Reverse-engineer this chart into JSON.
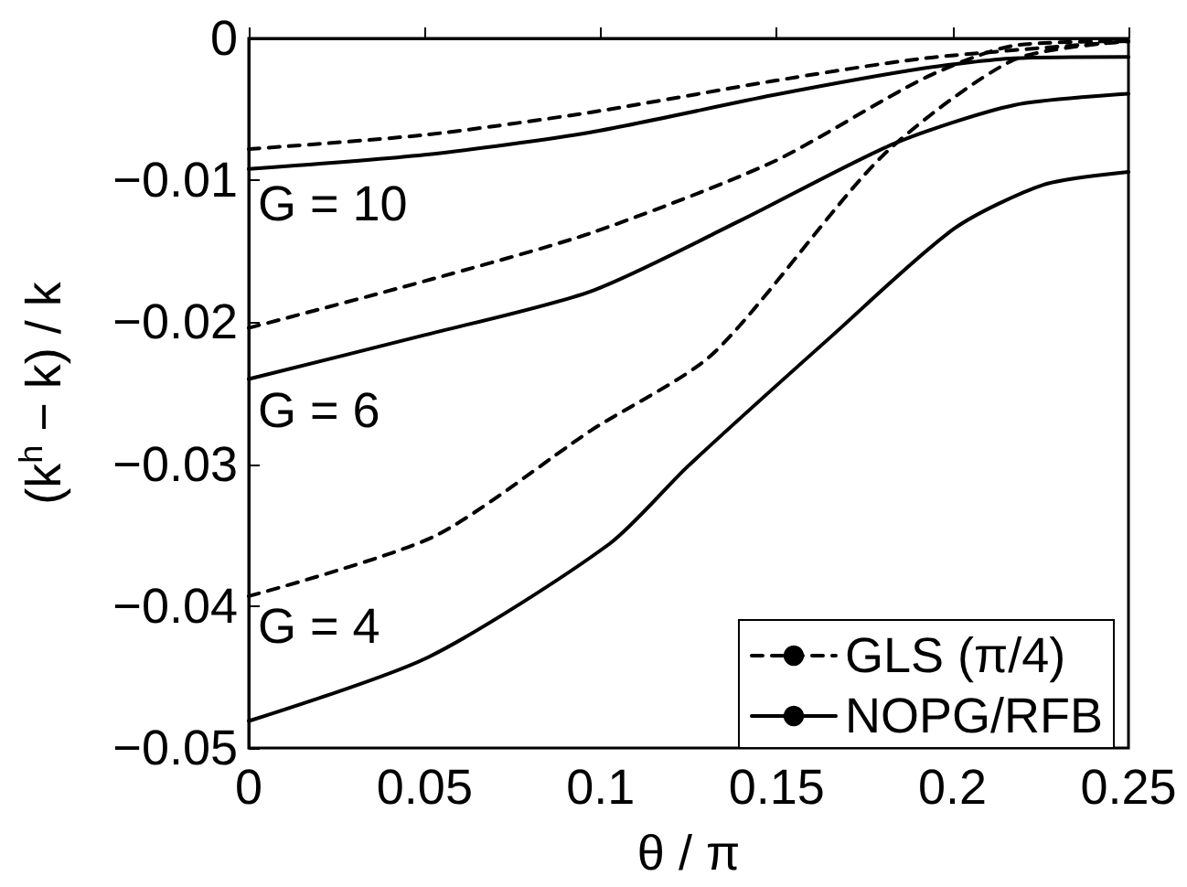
{
  "chart_data": {
    "type": "line",
    "xlabel": "θ / π",
    "ylabel": "(k$^{h}$ − k) / k",
    "xlim": [
      0,
      0.25
    ],
    "xticks": [
      0,
      0.05,
      0.1,
      0.15,
      0.2,
      0.25
    ],
    "ylim": [
      -0.05,
      0
    ],
    "yticks": [
      -0.05,
      -0.04,
      -0.03,
      -0.02,
      -0.01,
      0
    ],
    "grid": false,
    "legend": "bottom right",
    "marker": "none",
    "series": [
      {
        "name": "GLS (π/4)",
        "color": "#000000",
        "line_style": "dashed",
        "x": [
          0,
          0.05,
          0.0974,
          0.149,
          0.192,
          0.25
        ],
        "values": [
          -0.0078,
          -0.0068,
          -0.0052,
          -0.003,
          -0.0014,
          -0.0002
        ]
      },
      {
        "name": "NOPG/RFB",
        "color": "#000000",
        "line_style": "solid",
        "x": [
          0,
          0.05,
          0.0974,
          0.149,
          0.192,
          0.2175,
          0.25
        ],
        "values": [
          -0.0092,
          -0.0082,
          -0.0066,
          -0.004,
          -0.0021,
          -0.0014,
          -0.0013
        ]
      },
      {
        "color": "#000000",
        "line_style": "dashed",
        "x": [
          0,
          0.05,
          0.0974,
          0.149,
          0.192,
          0.2175,
          0.25
        ],
        "values": [
          -0.0204,
          -0.0171,
          -0.0137,
          -0.0087,
          -0.0028,
          -0.0005,
          -0.0002
        ]
      },
      {
        "color": "#000000",
        "line_style": "solid",
        "x": [
          0,
          0.05,
          0.0974,
          0.14,
          0.1835,
          0.2175,
          0.25
        ],
        "values": [
          -0.024,
          -0.0209,
          -0.0178,
          -0.0128,
          -0.0074,
          -0.0047,
          -0.0039
        ]
      },
      {
        "color": "#000000",
        "line_style": "dashed",
        "x": [
          0,
          0.0526,
          0.0974,
          0.132,
          0.18,
          0.2175,
          0.25
        ],
        "values": [
          -0.0393,
          -0.0351,
          -0.0276,
          -0.0222,
          -0.0083,
          -0.0015,
          -0.0002
        ]
      },
      {
        "color": "#000000",
        "line_style": "solid",
        "x": [
          0,
          0.051,
          0.1026,
          0.125,
          0.166,
          0.2005,
          0.226,
          0.25
        ],
        "values": [
          -0.0481,
          -0.0436,
          -0.0356,
          -0.0301,
          -0.0209,
          -0.0134,
          -0.0103,
          -0.0094
        ]
      }
    ],
    "annotations": [
      "G = 10",
      "G = 6",
      "G = 4"
    ]
  }
}
